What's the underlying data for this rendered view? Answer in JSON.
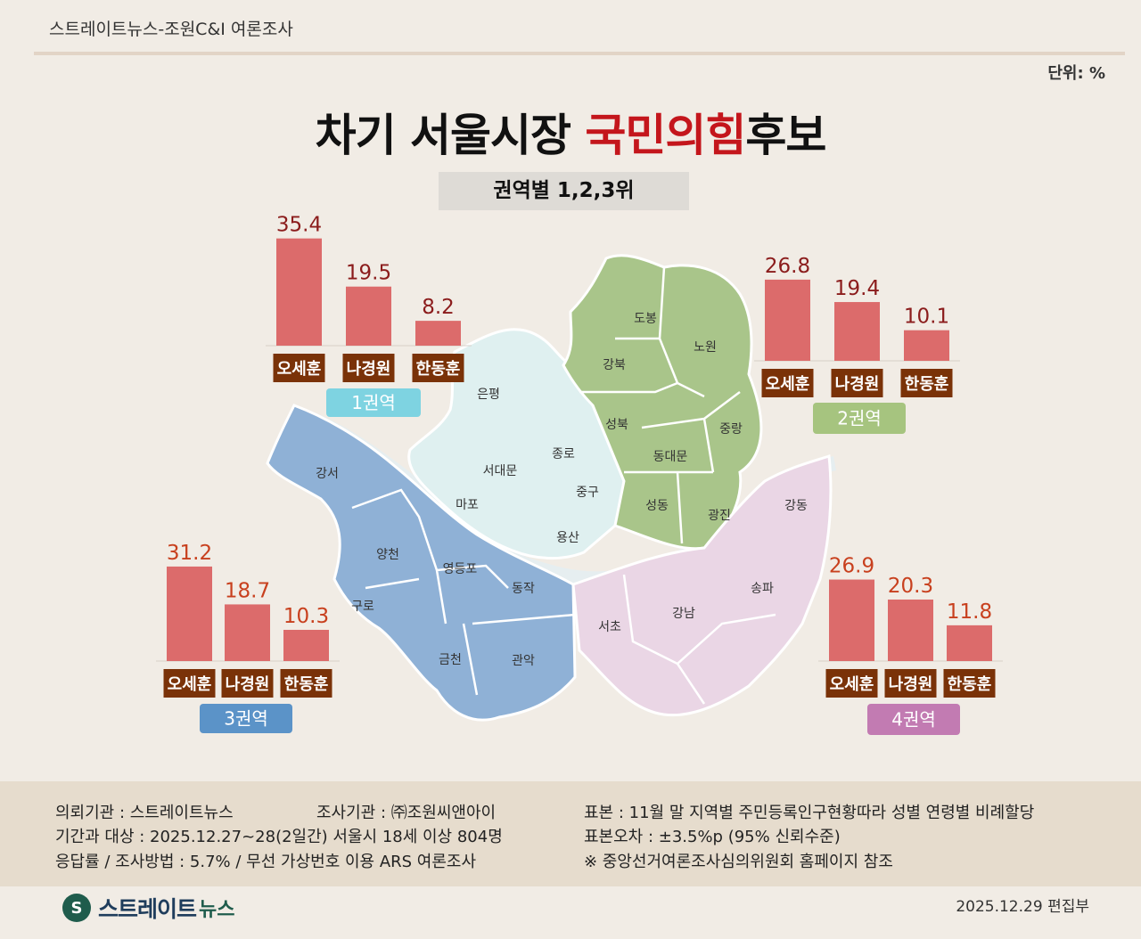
{
  "header": {
    "label": "스트레이트뉴스-조원C&I 여론조사"
  },
  "unit": "단위: %",
  "title": {
    "main": "차기 서울시장 ",
    "highlight": "국민의힘",
    "tail": "후보"
  },
  "subtitle": "권역별 1,2,3위",
  "districts": [
    "도봉",
    "노원",
    "강북",
    "은평",
    "성북",
    "중랑",
    "종로",
    "서대문",
    "동대문",
    "강서",
    "마포",
    "중구",
    "성동",
    "광진",
    "강동",
    "용산",
    "양천",
    "영등포",
    "동작",
    "구로",
    "송파",
    "강남",
    "서초",
    "금천",
    "관악"
  ],
  "chart_data": [
    {
      "type": "bar",
      "title": "1권역",
      "categories": [
        "오세훈",
        "나경원",
        "한동훈"
      ],
      "values": [
        35.4,
        19.5,
        8.2
      ]
    },
    {
      "type": "bar",
      "title": "2권역",
      "categories": [
        "오세훈",
        "나경원",
        "한동훈"
      ],
      "values": [
        26.8,
        19.4,
        10.1
      ]
    },
    {
      "type": "bar",
      "title": "3권역",
      "categories": [
        "오세훈",
        "나경원",
        "한동훈"
      ],
      "values": [
        31.2,
        18.7,
        10.3
      ]
    },
    {
      "type": "bar",
      "title": "4권역",
      "categories": [
        "오세훈",
        "나경원",
        "한동훈"
      ],
      "values": [
        26.9,
        20.3,
        11.8
      ]
    }
  ],
  "colors": {
    "bar": "#dc6b6b",
    "label_bg": "#7a3208",
    "value_text": [
      "#8b1c1c",
      "#8b1c1c",
      "#c8401e",
      "#c8401e"
    ],
    "region_badge": [
      "#7ed3e1",
      "#a6c47f",
      "#5b93c8",
      "#c27bb2"
    ],
    "region_fill": [
      "#dff0f0",
      "#a9c58a",
      "#8fb1d6",
      "#ead6e5"
    ]
  },
  "footer": {
    "client": "의뢰기관 : 스트레이트뉴스",
    "agency": "조사기관 : ㈜조원씨앤아이",
    "period": "기간과 대상 : 2025.12.27~28(2일간) 서울시  18세 이상 804명",
    "response": "응답률 / 조사방법 : 5.7% / 무선 가상번호 이용 ARS 여론조사",
    "sample": "표본 : 11월 말 지역별 주민등록인구현황따라 성별 연령별 비례할당",
    "error": "표본오차 : ±3.5%p (95% 신뢰수준)",
    "note": "※ 중앙선거여론조사심의위원회 홈페이지 참조"
  },
  "logo": {
    "name": "스트레이트",
    "sub": "뉴스"
  },
  "date": "2025.12.29  편집부"
}
